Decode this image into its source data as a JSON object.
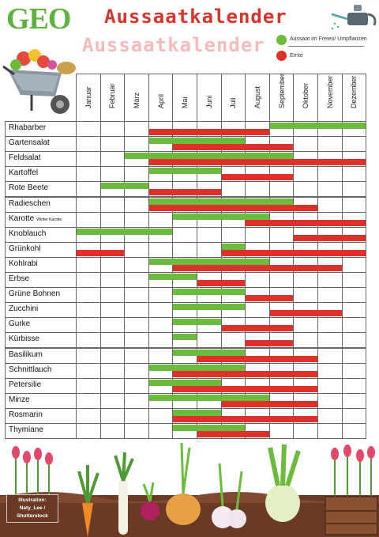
{
  "logo": "GEO",
  "title": "Aussaatkalender",
  "title_shadow": "Aussaatkalender",
  "legend": {
    "sowing_label": "Aussaat im Freien/ Umpflanzen",
    "harvest_label": "Ernte",
    "sowing_color": "#6cbb3c",
    "harvest_color": "#e0302a"
  },
  "months": [
    "Januar",
    "Februar",
    "März",
    "April",
    "Mai",
    "Juni",
    "Juli",
    "August",
    "September",
    "Oktober",
    "November",
    "Dezember"
  ],
  "rows": [
    {
      "name": "Rhabarber",
      "note": "",
      "sow": [
        [
          9,
          12
        ]
      ],
      "harvest": [
        [
          4,
          8
        ]
      ]
    },
    {
      "name": "Gartensalat",
      "note": "",
      "sow": [
        [
          4,
          7
        ]
      ],
      "harvest": [
        [
          5,
          9
        ]
      ]
    },
    {
      "name": "Feldsalat",
      "note": "",
      "sow": [
        [
          3,
          9
        ]
      ],
      "harvest": [
        [
          4,
          12
        ]
      ]
    },
    {
      "name": "Kartoffel",
      "note": "",
      "sow": [
        [
          4,
          6
        ]
      ],
      "harvest": [
        [
          7,
          9
        ]
      ]
    },
    {
      "name": "Rote Beete",
      "note": "",
      "sow": [
        [
          2,
          3
        ]
      ],
      "harvest": [
        [
          4,
          6
        ]
      ]
    },
    {
      "name": "Radieschen",
      "note": "",
      "sow": [
        [
          4,
          9
        ]
      ],
      "harvest": [
        [
          4,
          10
        ]
      ]
    },
    {
      "name": "Karotte",
      "note": "Winter Karotte",
      "sow": [
        [
          5,
          8
        ]
      ],
      "harvest": [
        [
          8,
          12
        ]
      ]
    },
    {
      "name": "Knoblauch",
      "note": "",
      "sow": [
        [
          1,
          4
        ]
      ],
      "harvest": [
        [
          10,
          12
        ]
      ]
    },
    {
      "name": "Grünkohl",
      "note": "",
      "sow": [
        [
          7,
          7
        ]
      ],
      "harvest": [
        [
          1,
          2
        ],
        [
          7,
          12
        ]
      ]
    },
    {
      "name": "Kohlrabi",
      "note": "",
      "sow": [
        [
          4,
          8
        ]
      ],
      "harvest": [
        [
          5,
          11
        ]
      ]
    },
    {
      "name": "Erbse",
      "note": "",
      "sow": [
        [
          4,
          5
        ]
      ],
      "harvest": [
        [
          6,
          7
        ]
      ]
    },
    {
      "name": "Grüne Bohnen",
      "note": "",
      "sow": [
        [
          5,
          7
        ]
      ],
      "harvest": [
        [
          8,
          9
        ]
      ]
    },
    {
      "name": "Zucchini",
      "note": "",
      "sow": [
        [
          5,
          7
        ]
      ],
      "harvest": [
        [
          9,
          11
        ]
      ]
    },
    {
      "name": "Gurke",
      "note": "",
      "sow": [
        [
          5,
          6
        ]
      ],
      "harvest": [
        [
          7,
          9
        ]
      ]
    },
    {
      "name": "Kürbisse",
      "note": "",
      "sow": [
        [
          5,
          5
        ]
      ],
      "harvest": [
        [
          8,
          9
        ]
      ]
    },
    {
      "name": "Basilikum",
      "note": "",
      "sow": [
        [
          5,
          7
        ]
      ],
      "harvest": [
        [
          6,
          10
        ]
      ]
    },
    {
      "name": "Schnittlauch",
      "note": "",
      "sow": [
        [
          4,
          7
        ]
      ],
      "harvest": [
        [
          5,
          10
        ]
      ]
    },
    {
      "name": "Petersilie",
      "note": "",
      "sow": [
        [
          4,
          6
        ]
      ],
      "harvest": [
        [
          5,
          10
        ]
      ]
    },
    {
      "name": "Minze",
      "note": "",
      "sow": [
        [
          4,
          8
        ]
      ],
      "harvest": [
        [
          7,
          10
        ]
      ]
    },
    {
      "name": "Rosmarin",
      "note": "",
      "sow": [
        [
          5,
          6
        ]
      ],
      "harvest": [
        [
          5,
          10
        ]
      ]
    },
    {
      "name": "Thymiane",
      "note": "",
      "sow": [
        [
          5,
          7
        ]
      ],
      "harvest": [
        [
          6,
          8
        ]
      ]
    }
  ],
  "credit": [
    "Illustration:",
    "Naty_Lee /",
    "Shutterstock"
  ]
}
